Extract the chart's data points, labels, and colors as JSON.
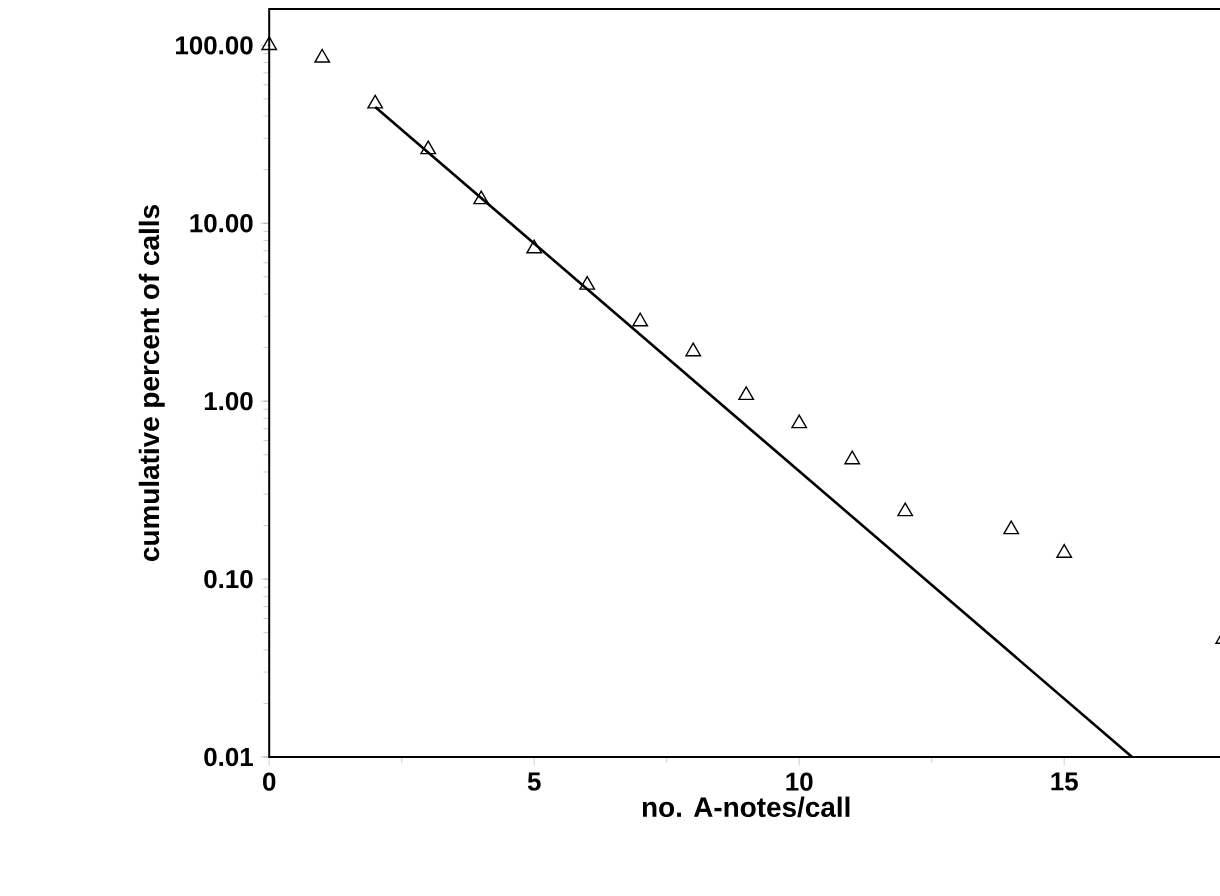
{
  "chart_data": {
    "type": "scatter",
    "xlabel": "no. A-notes/call",
    "ylabel": "cumulative percent of calls",
    "log": "y",
    "xlim": [
      0,
      18
    ],
    "ylim": [
      0.01,
      160
    ],
    "xticks": [
      0,
      5,
      10,
      15
    ],
    "yticks": [
      {
        "value": 0.01,
        "label": "0.01"
      },
      {
        "value": 0.1,
        "label": "0.10"
      },
      {
        "value": 1,
        "label": "1.00"
      },
      {
        "value": 10,
        "label": "10.00"
      },
      {
        "value": 100,
        "label": "100.00"
      }
    ],
    "series": [
      {
        "marker": "triangle",
        "color": "#000000",
        "x": [
          0,
          1,
          2,
          3,
          4,
          5,
          6,
          7,
          8,
          9,
          10,
          11,
          12,
          14,
          15,
          18
        ],
        "values": [
          100,
          85,
          47,
          26,
          13.6,
          7.2,
          4.5,
          2.8,
          1.9,
          1.08,
          0.75,
          0.47,
          0.24,
          0.19,
          0.14,
          0.046
        ]
      },
      {
        "type": "line",
        "marker": "none",
        "color": "#000000",
        "line_style": "solid",
        "x": [
          2,
          16.28
        ],
        "values": [
          45,
          0.01
        ]
      }
    ]
  }
}
